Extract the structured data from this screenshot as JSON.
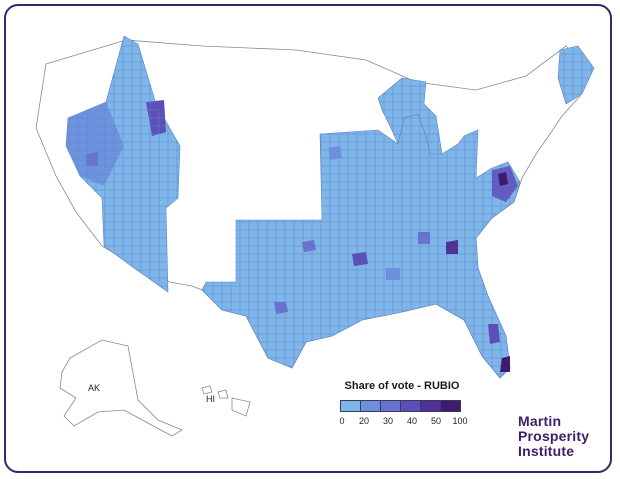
{
  "map": {
    "legend_title": "Share of vote - RUBIO",
    "legend_ticks": [
      "0",
      "20",
      "30",
      "40",
      "50",
      "100"
    ],
    "legend_colors": [
      "#7fb6e9",
      "#6d8fdd",
      "#6872cf",
      "#5d4fba",
      "#4f3296",
      "#3d1b6e"
    ],
    "labels": {
      "ak": "AK",
      "hi": "HI"
    },
    "no_data_color": "#ffffff",
    "border_color": "#2e2b6b"
  },
  "logo": {
    "line1": "Martin",
    "line2": "Prosperity",
    "line3": "Institute",
    "color": "#3b1f66"
  }
}
